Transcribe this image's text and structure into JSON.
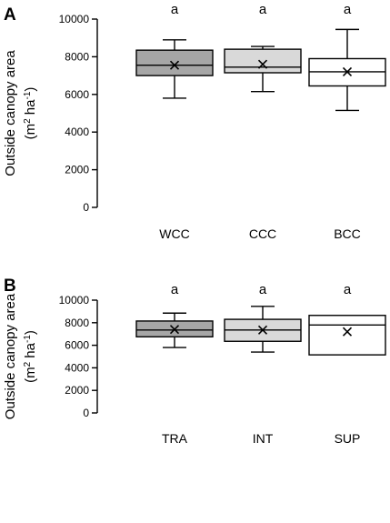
{
  "chart_data": [
    {
      "panel": "A",
      "type": "box",
      "ylabel_line1": "Outside canopy area",
      "ylabel_line2_prefix": "(m",
      "ylabel_sup1": "2",
      "ylabel_mid": " ha",
      "ylabel_sup2": "-1",
      "ylabel_suffix": ")",
      "ylim": [
        0,
        10000
      ],
      "yticks": [
        0,
        2000,
        4000,
        6000,
        8000,
        10000
      ],
      "ytick_labels": [
        "0",
        "2000",
        "4000",
        "6000",
        "8000",
        "10000"
      ],
      "categories": [
        "WCC",
        "CCC",
        "BCC"
      ],
      "boxes": [
        {
          "label": "WCC",
          "min": 5800,
          "q1": 7000,
          "median": 7550,
          "q3": 8350,
          "max": 8900,
          "mean": 7550,
          "fill": "#a6a6a6",
          "sig": "a"
        },
        {
          "label": "CCC",
          "min": 6150,
          "q1": 7150,
          "median": 7450,
          "q3": 8400,
          "max": 8550,
          "mean": 7600,
          "fill": "#d9d9d9",
          "sig": "a"
        },
        {
          "label": "BCC",
          "min": 5150,
          "q1": 6450,
          "median": 7200,
          "q3": 7900,
          "max": 9450,
          "mean": 7200,
          "fill": "#ffffff",
          "sig": "a"
        }
      ]
    },
    {
      "panel": "B",
      "type": "box",
      "ylabel_line1": "Outside canopy area",
      "ylabel_line2_prefix": "(m",
      "ylabel_sup1": "2",
      "ylabel_mid": " ha",
      "ylabel_sup2": "-1",
      "ylabel_suffix": ")",
      "ylim": [
        0,
        10000
      ],
      "yticks": [
        0,
        2000,
        4000,
        6000,
        8000,
        10000
      ],
      "ytick_labels": [
        "0",
        "2000",
        "4000",
        "6000",
        "8000",
        "10000"
      ],
      "categories": [
        "TRA",
        "INT",
        "SUP"
      ],
      "boxes": [
        {
          "label": "TRA",
          "min": 5800,
          "q1": 6750,
          "median": 7350,
          "q3": 8150,
          "max": 8850,
          "mean": 7400,
          "fill": "#a6a6a6",
          "sig": "a"
        },
        {
          "label": "INT",
          "min": 5400,
          "q1": 6350,
          "median": 7350,
          "q3": 8300,
          "max": 9450,
          "mean": 7350,
          "fill": "#d9d9d9",
          "sig": "a"
        },
        {
          "label": "SUP",
          "min": null,
          "q1": 5150,
          "median": 7800,
          "q3": 8650,
          "max": null,
          "mean": 7200,
          "fill": "#ffffff",
          "sig": "a"
        }
      ]
    }
  ]
}
